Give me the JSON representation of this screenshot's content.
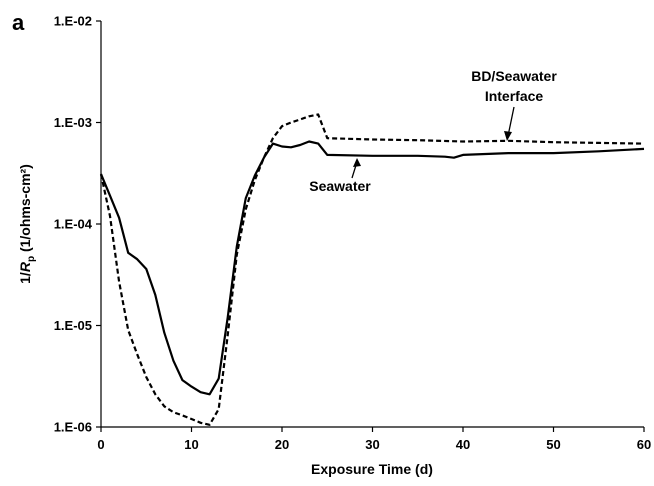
{
  "chart_data": {
    "type": "line",
    "panel_label": "a",
    "xlabel": "Exposure Time (d)",
    "ylabel_main": "1/",
    "ylabel_var": "R",
    "ylabel_sub": "p",
    "ylabel_tail": " (1/ohms-cm²)",
    "xlim": [
      0,
      60
    ],
    "ylim": [
      1e-06,
      0.01
    ],
    "y_scale": "log",
    "grid": false,
    "x_ticks": [
      0,
      10,
      20,
      30,
      40,
      50,
      60
    ],
    "x_tick_labels": [
      "0",
      "10",
      "20",
      "30",
      "40",
      "50",
      "60"
    ],
    "y_ticks": [
      1e-06,
      1e-05,
      0.0001,
      0.001,
      0.01
    ],
    "y_tick_labels": [
      "1.E-06",
      "1.E-05",
      "1.E-04",
      "1.E-03",
      "1.E-02"
    ],
    "series": [
      {
        "name": "Seawater",
        "style": "solid",
        "color": "#000000",
        "x": [
          0,
          1,
          2,
          3,
          4,
          5,
          6,
          7,
          8,
          9,
          10,
          11,
          12,
          13,
          14,
          15,
          16,
          17,
          18,
          19,
          20,
          21,
          22,
          23,
          24,
          25,
          30,
          35,
          38,
          39,
          40,
          45,
          50,
          55,
          60
        ],
        "y": [
          0.00031,
          0.00019,
          0.000115,
          5.2e-05,
          4.5e-05,
          3.6e-05,
          2e-05,
          8.5e-06,
          4.5e-06,
          2.9e-06,
          2.5e-06,
          2.2e-06,
          2.1e-06,
          3e-06,
          1.2e-05,
          6e-05,
          0.00018,
          0.0003,
          0.00045,
          0.00062,
          0.00058,
          0.00057,
          0.0006,
          0.00065,
          0.00062,
          0.00048,
          0.00047,
          0.00047,
          0.00046,
          0.00045,
          0.00048,
          0.0005,
          0.0005,
          0.00052,
          0.00055
        ]
      },
      {
        "name": "BD/Seawater Interface",
        "style": "dashed",
        "color": "#000000",
        "x": [
          0,
          1,
          2,
          3,
          4,
          5,
          6,
          7,
          8,
          9,
          10,
          11,
          12,
          13,
          14,
          15,
          16,
          17,
          18,
          19,
          20,
          21,
          22,
          23,
          24,
          25,
          30,
          35,
          40,
          45,
          50,
          55,
          60
        ],
        "y": [
          0.00031,
          0.00012,
          2.7e-05,
          9e-06,
          5.2e-06,
          3.1e-06,
          2.1e-06,
          1.6e-06,
          1.4e-06,
          1.3e-06,
          1.2e-06,
          1.1e-06,
          1.05e-06,
          1.5e-06,
          8e-06,
          5e-05,
          0.00014,
          0.00027,
          0.00045,
          0.0007,
          0.00092,
          0.001,
          0.00107,
          0.00115,
          0.0012,
          0.0007,
          0.00068,
          0.00067,
          0.00065,
          0.00066,
          0.00064,
          0.00063,
          0.00062
        ]
      }
    ],
    "annotations": [
      {
        "text": "Seawater",
        "series": "Seawater",
        "lines": [
          "Seawater"
        ]
      },
      {
        "text": "BD/Seawater Interface",
        "series": "BD/Seawater Interface",
        "lines": [
          "BD/Seawater",
          "Interface"
        ]
      }
    ]
  }
}
